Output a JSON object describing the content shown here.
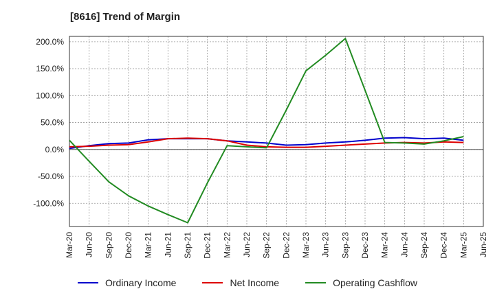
{
  "chart_data": {
    "type": "line",
    "title": "[8616]  Trend of Margin",
    "x": [
      "Mar-20",
      "Jun-20",
      "Sep-20",
      "Dec-20",
      "Mar-21",
      "Jun-21",
      "Sep-21",
      "Dec-21",
      "Mar-22",
      "Jun-22",
      "Sep-22",
      "Dec-22",
      "Mar-23",
      "Jun-23",
      "Sep-23",
      "Dec-23",
      "Mar-24",
      "Jun-24",
      "Sep-24",
      "Dec-24",
      "Mar-25",
      "Jun-25"
    ],
    "ylim": [
      -143,
      210
    ],
    "yticks": [
      -100,
      -50,
      0,
      50,
      100,
      150,
      200
    ],
    "ytick_labels": [
      "-100.0%",
      "-50.0%",
      "0.0%",
      "50.0%",
      "100.0%",
      "150.0%",
      "200.0%"
    ],
    "grid": true,
    "legend_position": "bottom",
    "series": [
      {
        "name": "Ordinary Income",
        "color": "#0000cc",
        "values": [
          2,
          7,
          11,
          12,
          18,
          20,
          20,
          20,
          16,
          14,
          12,
          8,
          9,
          12,
          14,
          17,
          21,
          22,
          20,
          21,
          17,
          null
        ]
      },
      {
        "name": "Net Income",
        "color": "#dd0000",
        "values": [
          5,
          6,
          8,
          9,
          14,
          20,
          21,
          20,
          16,
          8,
          5,
          4,
          4,
          6,
          8,
          10,
          12,
          13,
          12,
          14,
          13,
          null
        ]
      },
      {
        "name": "Operating Cashflow",
        "color": "#228B22",
        "values": [
          17,
          -22,
          -60,
          -86,
          -105,
          -121,
          -136,
          -62,
          7,
          5,
          3,
          73,
          146,
          175,
          206,
          110,
          13,
          12,
          10,
          16,
          24,
          null
        ]
      }
    ]
  }
}
